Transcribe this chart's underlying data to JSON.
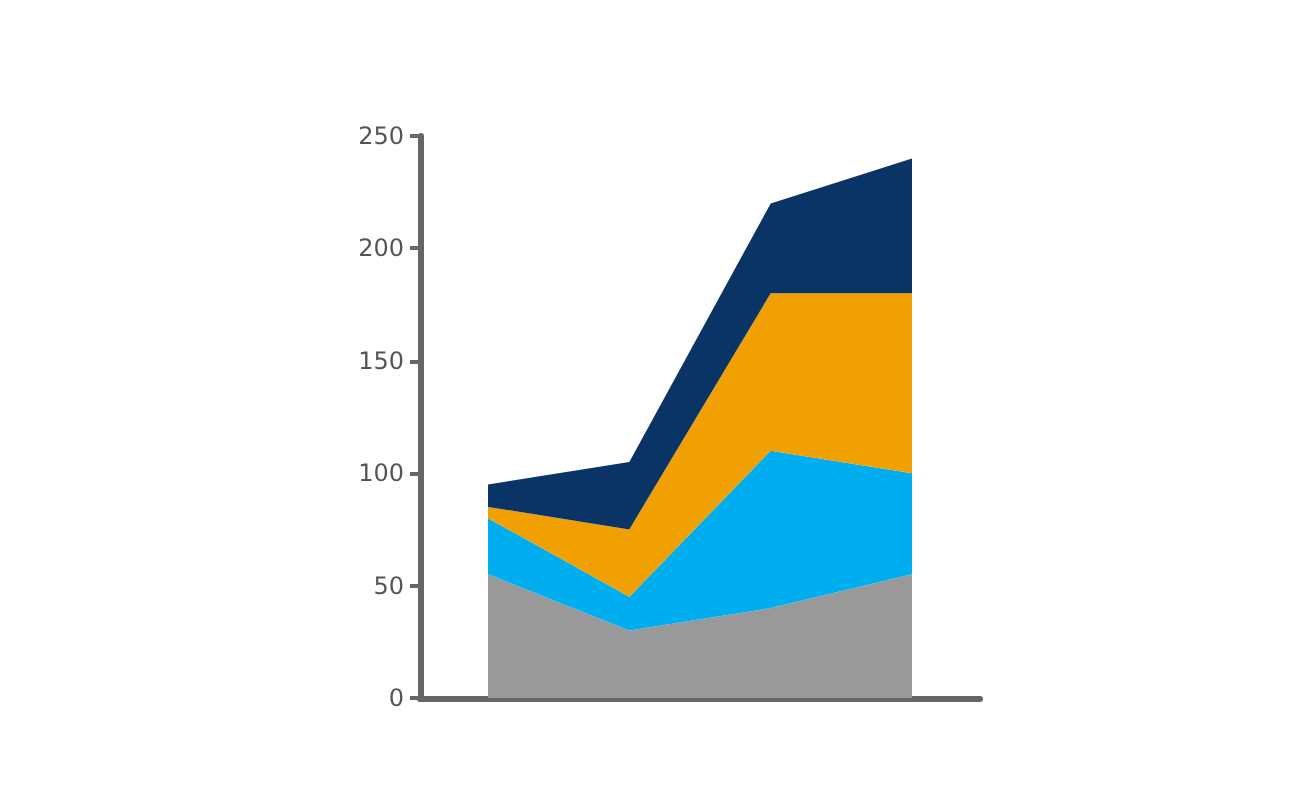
{
  "chart_data": {
    "type": "area",
    "stacked": true,
    "categories": [
      null,
      null,
      null,
      null
    ],
    "series": [
      {
        "color": "#999999",
        "values": [
          55,
          30,
          40,
          55
        ]
      },
      {
        "color": "#00aeef",
        "values": [
          25,
          15,
          70,
          45
        ]
      },
      {
        "color": "#f0a000",
        "values": [
          5,
          30,
          70,
          80
        ]
      },
      {
        "color": "#0a3466",
        "values": [
          10,
          30,
          40,
          60
        ]
      }
    ],
    "ylim": [
      0,
      250
    ],
    "yticks": [
      0,
      50,
      100,
      150,
      200,
      250
    ],
    "grid": false
  }
}
